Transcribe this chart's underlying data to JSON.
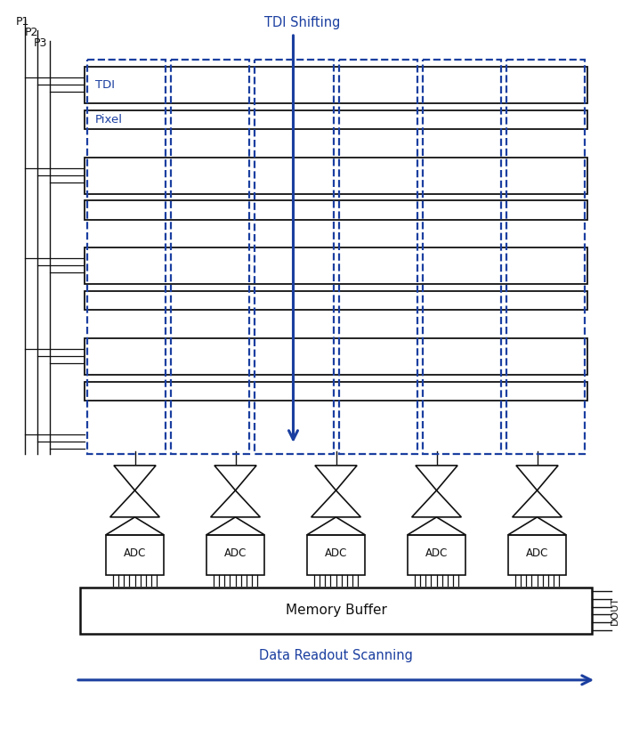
{
  "bg_color": "#ffffff",
  "blue": "#1b3fa0",
  "black": "#111111",
  "tdi_label": "TDI",
  "pixel_label": "Pixel",
  "tdi_shifting_label": "TDI Shifting",
  "data_readout_label": "Data Readout Scanning",
  "memory_buffer_label": "Memory Buffer",
  "adc_label": "ADC",
  "dout_label": "DOUT",
  "p_labels": [
    "P1",
    "P2",
    "P3"
  ],
  "n_adc": 5,
  "n_cols": 6,
  "n_groups": 4
}
